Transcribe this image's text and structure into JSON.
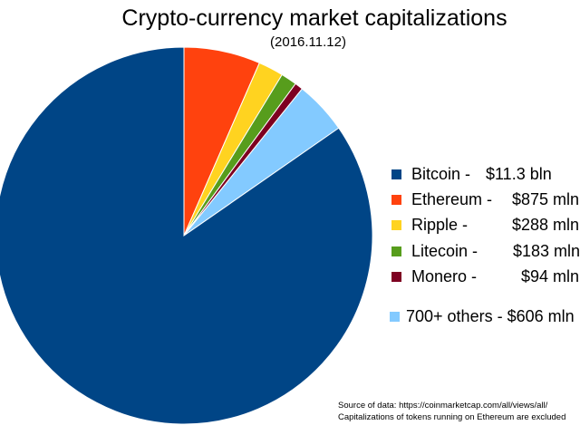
{
  "chart_data": {
    "type": "pie",
    "title": "Crypto-currency market capitalizations",
    "subtitle": "(2016.11.12)",
    "unit": "million USD",
    "legend_placement": "right",
    "slices": [
      {
        "name": "Bitcoin",
        "value": 11300,
        "label": "$11.3  bln",
        "color": "#004586"
      },
      {
        "name": "Ethereum",
        "value": 875,
        "label": "$875 mln",
        "color": "#ff420e"
      },
      {
        "name": "Ripple",
        "value": 288,
        "label": "$288 mln",
        "color": "#ffd320"
      },
      {
        "name": "Litecoin",
        "value": 183,
        "label": "$183 mln",
        "color": "#579d1c"
      },
      {
        "name": "Monero",
        "value": 94,
        "label": "$94 mln",
        "color": "#7e0021"
      },
      {
        "name": "700+ others",
        "value": 606,
        "label": "$606 mln",
        "color": "#83caff"
      }
    ],
    "notes": [
      "Source of data: https://coinmarketcap.com/all/views/all/",
      "Capitalizations of tokens running on Ethereum are excluded"
    ]
  }
}
